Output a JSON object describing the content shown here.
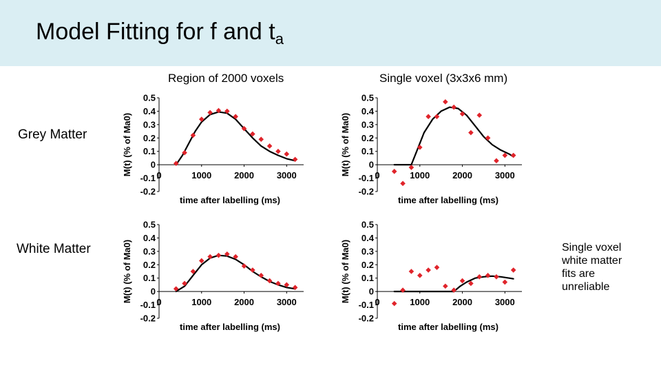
{
  "title": {
    "main": "Model Fitting for f and t",
    "sub": "a"
  },
  "columns": [
    "Region of 2000 voxels",
    "Single voxel (3x3x6 mm)"
  ],
  "rows": [
    "Grey Matter",
    "White Matter"
  ],
  "note": [
    "Single voxel",
    "white matter",
    "fits are",
    "unreliable"
  ],
  "colors": {
    "header_bg": "#daeef3",
    "marker": "#e0242b",
    "line": "#000000"
  },
  "chart_data": [
    {
      "type": "scatter",
      "title": "Grey Matter - Region of 2000 voxels",
      "xlabel": "time after labelling (ms)",
      "ylabel": "M(t) (% of Ma0)",
      "xlim": [
        0,
        3400
      ],
      "ylim": [
        -0.2,
        0.5
      ],
      "xticks": [
        "0",
        "1000",
        "2000",
        "3000"
      ],
      "yticks": [
        "0.5",
        "0.4",
        "0.3",
        "0.2",
        "0.1",
        "0",
        "-0.1",
        "-0.2"
      ],
      "series": [
        {
          "name": "data",
          "kind": "points",
          "x": [
            400,
            600,
            800,
            1000,
            1200,
            1400,
            1600,
            1800,
            2000,
            2200,
            2400,
            2600,
            2800,
            3000,
            3200
          ],
          "y": [
            0.01,
            0.09,
            0.22,
            0.34,
            0.39,
            0.405,
            0.4,
            0.36,
            0.27,
            0.23,
            0.19,
            0.14,
            0.1,
            0.08,
            0.04
          ]
        },
        {
          "name": "fit",
          "kind": "line",
          "x": [
            400,
            550,
            700,
            850,
            1000,
            1200,
            1400,
            1600,
            1800,
            2000,
            2200,
            2400,
            2600,
            2800,
            3000,
            3200
          ],
          "y": [
            0.0,
            0.07,
            0.16,
            0.25,
            0.32,
            0.375,
            0.395,
            0.385,
            0.34,
            0.27,
            0.2,
            0.14,
            0.1,
            0.07,
            0.045,
            0.03
          ]
        }
      ]
    },
    {
      "type": "scatter",
      "title": "Grey Matter - Single voxel (3x3x6 mm)",
      "xlabel": "time after labelling (ms)",
      "ylabel": "M(t) (% of Ma0)",
      "xlim": [
        0,
        3400
      ],
      "ylim": [
        -0.2,
        0.5
      ],
      "xticks": [
        "0",
        "1000",
        "2000",
        "3000"
      ],
      "yticks": [
        "0.5",
        "0.4",
        "0.3",
        "0.2",
        "0.1",
        "0",
        "-0.1",
        "-0.2"
      ],
      "series": [
        {
          "name": "data",
          "kind": "points",
          "x": [
            400,
            600,
            800,
            1000,
            1200,
            1400,
            1600,
            1800,
            2000,
            2200,
            2400,
            2600,
            2800,
            3000,
            3200
          ],
          "y": [
            -0.05,
            -0.14,
            -0.02,
            0.13,
            0.36,
            0.36,
            0.47,
            0.43,
            0.38,
            0.24,
            0.37,
            0.2,
            0.03,
            0.07,
            0.07
          ]
        },
        {
          "name": "fit",
          "kind": "line",
          "x": [
            400,
            800,
            950,
            1100,
            1300,
            1500,
            1700,
            1900,
            2100,
            2300,
            2500,
            2700,
            2900,
            3100,
            3200
          ],
          "y": [
            0.0,
            0.0,
            0.12,
            0.24,
            0.34,
            0.4,
            0.43,
            0.42,
            0.37,
            0.29,
            0.21,
            0.15,
            0.11,
            0.08,
            0.06
          ]
        }
      ]
    },
    {
      "type": "scatter",
      "title": "White Matter - Region of 2000 voxels",
      "xlabel": "time after labelling (ms)",
      "ylabel": "M(t) (% of Ma0)",
      "xlim": [
        0,
        3400
      ],
      "ylim": [
        -0.2,
        0.5
      ],
      "xticks": [
        "0",
        "1000",
        "2000",
        "3000"
      ],
      "yticks": [
        "0.5",
        "0.4",
        "0.3",
        "0.2",
        "0.1",
        "0",
        "-0.1",
        "-0.2"
      ],
      "series": [
        {
          "name": "data",
          "kind": "points",
          "x": [
            400,
            600,
            800,
            1000,
            1200,
            1400,
            1600,
            1800,
            2000,
            2200,
            2400,
            2600,
            2800,
            3000,
            3200
          ],
          "y": [
            0.02,
            0.06,
            0.15,
            0.23,
            0.26,
            0.27,
            0.28,
            0.26,
            0.19,
            0.16,
            0.12,
            0.08,
            0.06,
            0.05,
            0.03
          ]
        },
        {
          "name": "fit",
          "kind": "line",
          "x": [
            400,
            600,
            800,
            1000,
            1200,
            1400,
            1600,
            1800,
            2000,
            2200,
            2400,
            2600,
            2800,
            3000,
            3200
          ],
          "y": [
            0.0,
            0.04,
            0.12,
            0.2,
            0.25,
            0.27,
            0.265,
            0.24,
            0.2,
            0.15,
            0.11,
            0.075,
            0.05,
            0.03,
            0.02
          ]
        }
      ]
    },
    {
      "type": "scatter",
      "title": "White Matter - Single voxel (3x3x6 mm)",
      "xlabel": "time after labelling (ms)",
      "ylabel": "M(t) (% of Ma0)",
      "xlim": [
        0,
        3400
      ],
      "ylim": [
        -0.2,
        0.5
      ],
      "xticks": [
        "0",
        "1000",
        "2000",
        "3000"
      ],
      "yticks": [
        "0.5",
        "0.4",
        "0.3",
        "0.2",
        "0.1",
        "0",
        "-0.1",
        "-0.2"
      ],
      "series": [
        {
          "name": "data",
          "kind": "points",
          "x": [
            400,
            600,
            800,
            1000,
            1200,
            1400,
            1600,
            1800,
            2000,
            2200,
            2400,
            2600,
            2800,
            3000,
            3200
          ],
          "y": [
            -0.09,
            0.01,
            0.15,
            0.12,
            0.16,
            0.18,
            0.04,
            0.01,
            0.08,
            0.06,
            0.11,
            0.12,
            0.11,
            0.07,
            0.16
          ]
        },
        {
          "name": "fit",
          "kind": "line",
          "x": [
            400,
            1800,
            1950,
            2100,
            2300,
            2500,
            2700,
            2900,
            3100,
            3200
          ],
          "y": [
            0.0,
            0.0,
            0.04,
            0.07,
            0.1,
            0.11,
            0.115,
            0.11,
            0.1,
            0.095
          ]
        }
      ]
    }
  ]
}
